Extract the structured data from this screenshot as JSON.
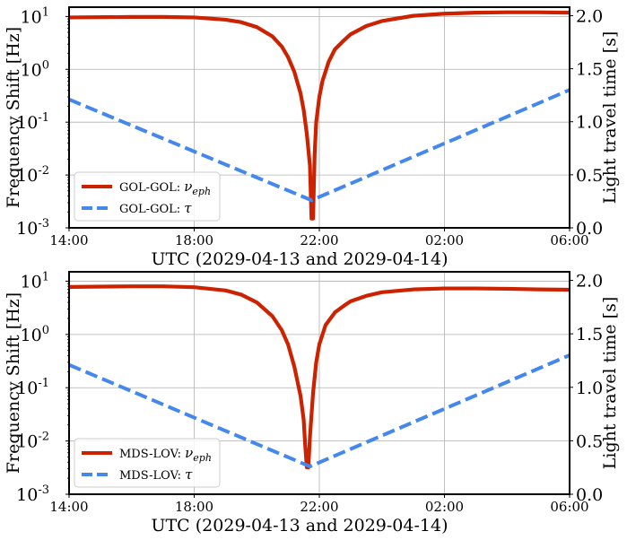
{
  "chart_data": [
    {
      "type": "line",
      "xlabel": "UTC (2029-04-13 and 2029-04-14)",
      "ylabel": "Frequency Shift [Hz]",
      "ylabel_right": "Light travel time [s]",
      "x_unit": "hours since 2029-04-13 00:00 UTC",
      "xlim": [
        14,
        30
      ],
      "x_ticks": [
        14,
        18,
        22,
        26,
        30
      ],
      "x_tick_labels": [
        "14:00",
        "18:00",
        "22:00",
        "02:00",
        "06:00"
      ],
      "y_scale": "log",
      "ylim": [
        0.001,
        15
      ],
      "y_tick_labels": [
        "10^1",
        "10^0",
        "10^-1",
        "10^-2",
        "10^-3"
      ],
      "y2lim": [
        0.0,
        2.08
      ],
      "y2_tick_labels": [
        "2.0",
        "1.5",
        "1.0",
        "0.5",
        "0.0"
      ],
      "grid": true,
      "legend": "lower-left",
      "series": [
        {
          "name": "GOL-GOL: ν_eph",
          "legend_prefix": "GOL-GOL: ",
          "legend_symbol": "ν",
          "legend_sub": "eph",
          "axis": "left",
          "color": "#cc2200",
          "style": "solid",
          "x": [
            14,
            16,
            17,
            18,
            19,
            19.5,
            20,
            20.5,
            20.8,
            21,
            21.2,
            21.4,
            21.5,
            21.6,
            21.7,
            21.75,
            21.8,
            21.85,
            21.9,
            22.0,
            22.1,
            22.3,
            22.5,
            22.8,
            23,
            23.5,
            24,
            25,
            26,
            27,
            28,
            29,
            30
          ],
          "y": [
            9.6,
            9.8,
            9.8,
            9.6,
            8.7,
            7.8,
            6.3,
            4.2,
            2.7,
            1.7,
            0.9,
            0.35,
            0.17,
            0.06,
            0.015,
            0.0015,
            0.0015,
            0.025,
            0.1,
            0.3,
            0.6,
            1.4,
            2.4,
            3.6,
            4.6,
            6.6,
            8.2,
            10.3,
            11.3,
            11.8,
            12.0,
            12.0,
            11.8
          ]
        },
        {
          "name": "GOL-GOL: τ",
          "legend_prefix": "GOL-GOL: ",
          "legend_symbol": "τ",
          "legend_sub": "",
          "axis": "right",
          "color": "#4488ee",
          "style": "dashed",
          "x": [
            14,
            21.75,
            30
          ],
          "y": [
            1.21,
            0.26,
            1.3
          ]
        }
      ]
    },
    {
      "type": "line",
      "xlabel": "UTC (2029-04-13 and 2029-04-14)",
      "ylabel": "Frequency Shift [Hz]",
      "ylabel_right": "Light travel time [s]",
      "x_unit": "hours since 2029-04-13 00:00 UTC",
      "xlim": [
        14,
        30
      ],
      "x_ticks": [
        14,
        18,
        22,
        26,
        30
      ],
      "x_tick_labels": [
        "14:00",
        "18:00",
        "22:00",
        "02:00",
        "06:00"
      ],
      "y_scale": "log",
      "ylim": [
        0.001,
        15
      ],
      "y_tick_labels": [
        "10^1",
        "10^0",
        "10^-1",
        "10^-2",
        "10^-3"
      ],
      "y2lim": [
        0.0,
        2.08
      ],
      "y2_tick_labels": [
        "2.0",
        "1.5",
        "1.0",
        "0.5",
        "0.0"
      ],
      "grid": true,
      "legend": "lower-left",
      "series": [
        {
          "name": "MDS-LOV: ν_eph",
          "legend_prefix": "MDS-LOV: ",
          "legend_symbol": "ν",
          "legend_sub": "eph",
          "axis": "left",
          "color": "#cc2200",
          "style": "solid",
          "x": [
            14,
            16,
            17,
            18,
            19,
            19.5,
            20,
            20.5,
            20.8,
            21,
            21.2,
            21.4,
            21.5,
            21.55,
            21.6,
            21.65,
            21.7,
            21.8,
            21.9,
            22.0,
            22.2,
            22.5,
            22.8,
            23,
            23.5,
            24,
            25,
            26,
            27,
            28,
            29,
            30
          ],
          "y": [
            7.8,
            8.0,
            8.0,
            7.7,
            6.7,
            5.6,
            4.0,
            2.2,
            1.2,
            0.65,
            0.25,
            0.07,
            0.025,
            0.008,
            0.0032,
            0.0032,
            0.012,
            0.08,
            0.3,
            0.65,
            1.5,
            2.6,
            3.5,
            4.2,
            5.3,
            6.2,
            7.0,
            7.3,
            7.3,
            7.2,
            7.0,
            6.9
          ]
        },
        {
          "name": "MDS-LOV: τ",
          "legend_prefix": "MDS-LOV: ",
          "legend_symbol": "τ",
          "legend_sub": "",
          "axis": "right",
          "color": "#4488ee",
          "style": "dashed",
          "x": [
            14,
            21.7,
            30
          ],
          "y": [
            1.21,
            0.26,
            1.3
          ]
        }
      ]
    }
  ]
}
